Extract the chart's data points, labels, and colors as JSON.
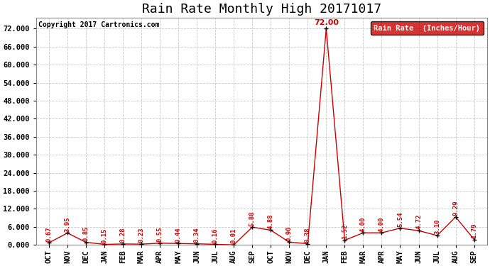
{
  "title": "Rain Rate Monthly High 20171017",
  "copyright": "Copyright 2017 Cartronics.com",
  "legend_label": "Rain Rate  (Inches/Hour)",
  "months": [
    "OCT",
    "NOV",
    "DEC",
    "JAN",
    "FEB",
    "MAR",
    "APR",
    "MAY",
    "JUN",
    "JUL",
    "AUG",
    "SEP",
    "OCT",
    "NOV",
    "DEC",
    "JAN",
    "FEB",
    "MAR",
    "APR",
    "MAY",
    "JUN",
    "JUL",
    "AUG",
    "SEP"
  ],
  "values": [
    0.67,
    3.95,
    0.85,
    0.15,
    0.28,
    0.23,
    0.55,
    0.44,
    0.34,
    0.16,
    0.01,
    5.88,
    4.88,
    0.9,
    0.38,
    72.0,
    1.52,
    4.0,
    4.0,
    5.54,
    4.72,
    3.1,
    9.29,
    1.79
  ],
  "line_color": "#cc0000",
  "marker_color": "#000000",
  "grid_color": "#c8c8c8",
  "background_color": "#ffffff",
  "title_fontsize": 13,
  "value_fontsize": 6.5,
  "copyright_fontsize": 7,
  "tick_fontsize": 7.5,
  "ylim": [
    0,
    75.6
  ],
  "yticks": [
    0.0,
    6.0,
    12.0,
    18.0,
    24.0,
    30.0,
    36.0,
    42.0,
    48.0,
    54.0,
    60.0,
    66.0,
    72.0
  ],
  "peak_label": "72.00",
  "peak_index": 15
}
